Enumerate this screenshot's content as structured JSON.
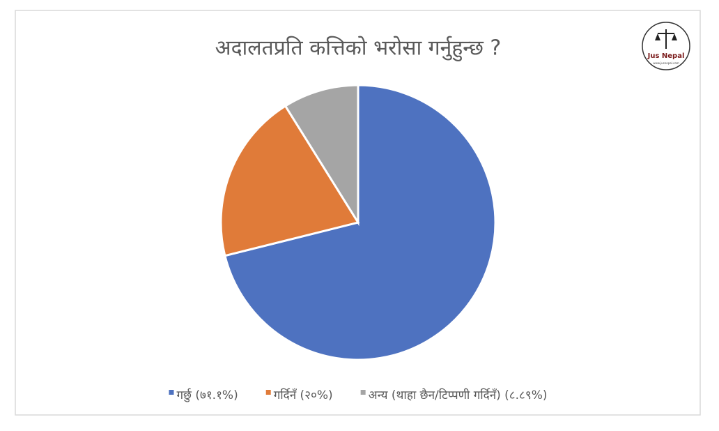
{
  "chart_data": {
    "type": "pie",
    "title": "अदालतप्रति कत्तिको भरोसा गर्नुहुन्छ ?",
    "categories": [
      "गर्छु (७१.१%)",
      "गर्दिनँ (२०%)",
      "अन्य (थाहा छैन/टिप्पणी गर्दिनँ) (८.८९%)"
    ],
    "values": [
      71.1,
      20,
      8.89
    ],
    "colors": [
      "#4e72c0",
      "#e07b39",
      "#a5a5a5"
    ],
    "legend": "bottom"
  },
  "logo": {
    "name": "Jus Nepal",
    "url": "www.jusnepal.com"
  }
}
